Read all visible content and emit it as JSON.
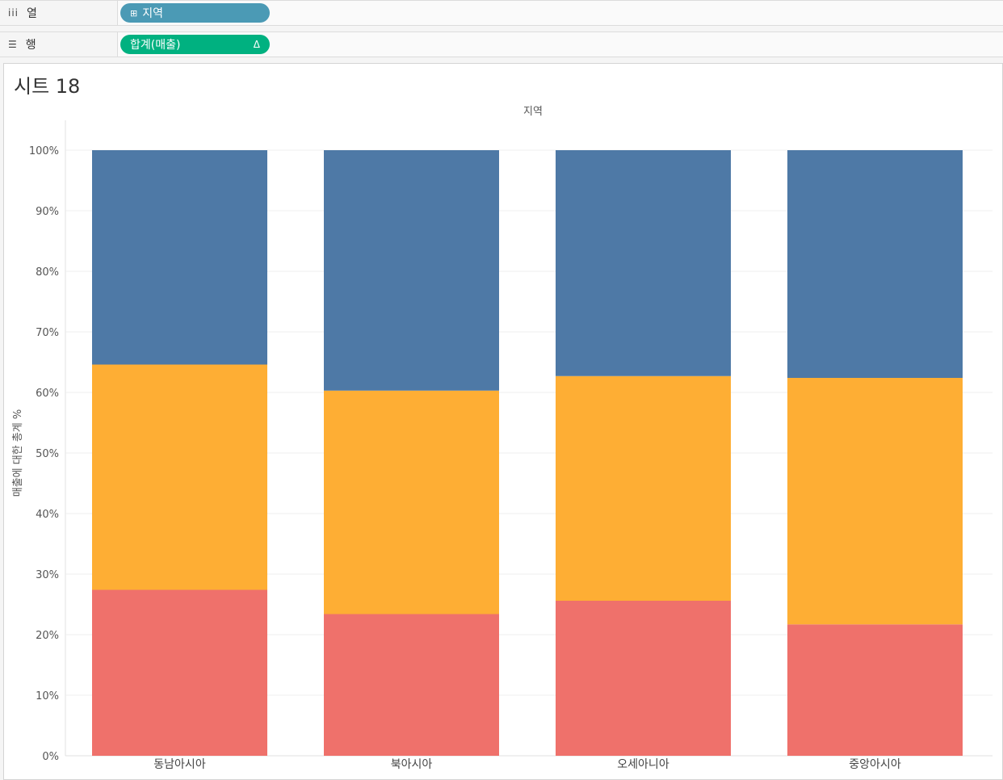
{
  "shelves": {
    "columns": {
      "label": "열",
      "icon": "iii",
      "pill": {
        "plus": "⊞",
        "text": "지역",
        "color": "#4b9ab5"
      }
    },
    "rows": {
      "label": "행",
      "icon": "☰",
      "pill": {
        "text": "합계(매출)",
        "delta": "Δ",
        "color": "#00b180"
      }
    }
  },
  "sheet": {
    "title": "시트 18"
  },
  "chart_data": {
    "type": "bar",
    "stacked": true,
    "header": "지역",
    "ylabel": "매출에 대한 총계 %",
    "ylim": [
      0,
      100
    ],
    "yticks": [
      "0%",
      "10%",
      "20%",
      "30%",
      "40%",
      "50%",
      "60%",
      "70%",
      "80%",
      "90%",
      "100%"
    ],
    "grid": true,
    "categories": [
      "동남아시아",
      "북아시아",
      "오세아니아",
      "중앙아시아"
    ],
    "series": [
      {
        "values": [
          27.4,
          23.4,
          25.6,
          21.7
        ],
        "color": "#ef716b"
      },
      {
        "values": [
          37.2,
          36.9,
          37.1,
          40.7
        ],
        "color": "#feae34"
      },
      {
        "values": [
          35.4,
          39.7,
          37.3,
          37.6
        ],
        "color": "#4e79a6"
      }
    ]
  }
}
